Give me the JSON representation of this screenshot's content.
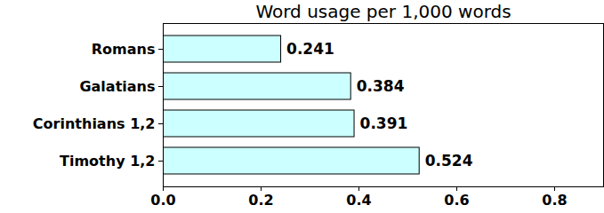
{
  "chart_data": {
    "type": "bar",
    "title": "Word usage per 1,000 words",
    "orientation": "horizontal",
    "categories": [
      "Romans",
      "Galatians",
      "Corinthians 1,2",
      "Timothy 1,2"
    ],
    "values": [
      0.241,
      0.384,
      0.391,
      0.524
    ],
    "color": "#ccffff",
    "xlim": [
      0,
      0.9
    ],
    "xticks": [
      {
        "value": 0,
        "label": "0.0"
      },
      0.2,
      0.4,
      0.6,
      0.8
    ],
    "grid": false,
    "data_labels": true
  }
}
